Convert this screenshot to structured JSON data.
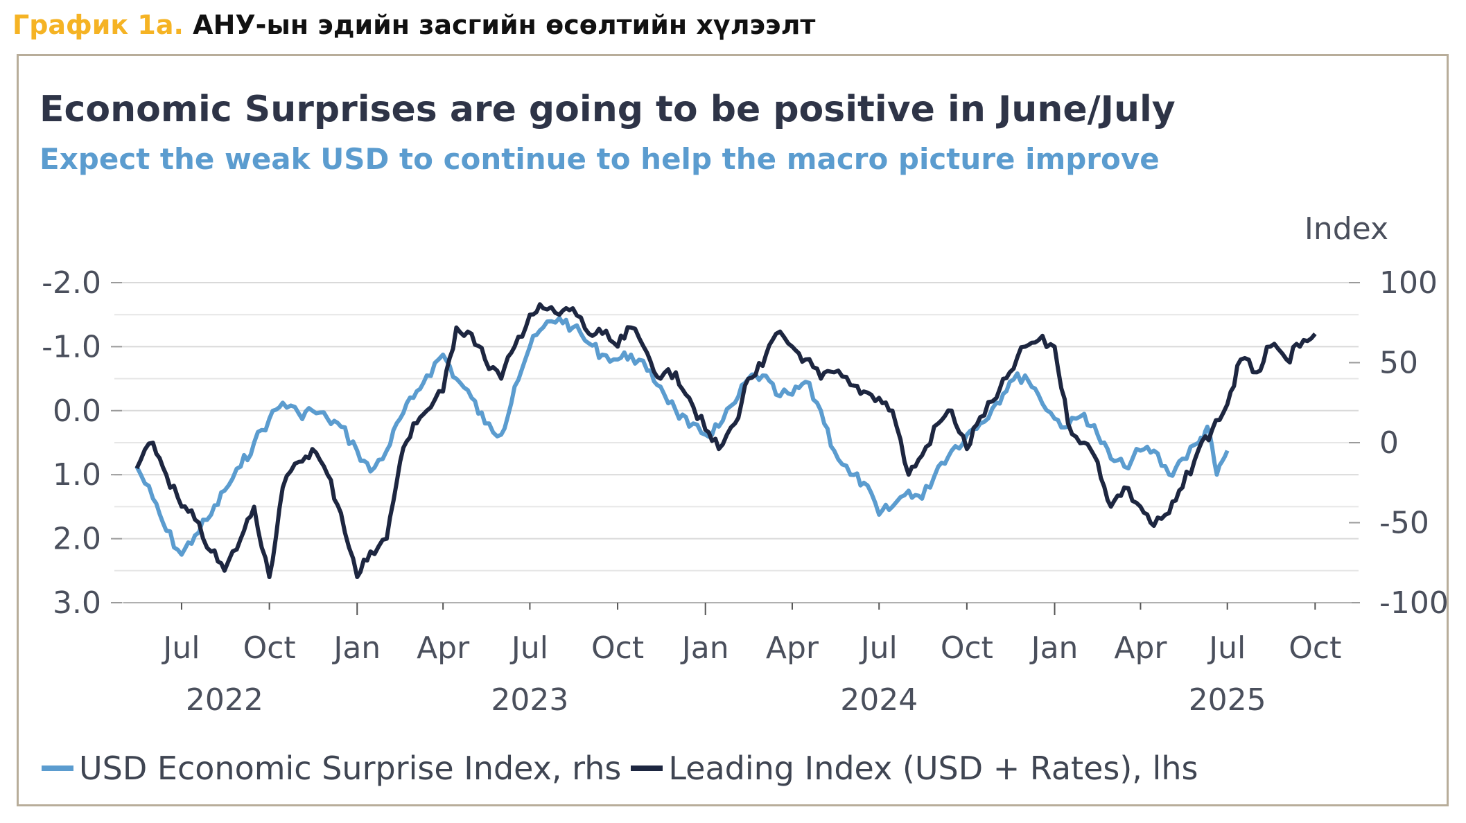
{
  "header": {
    "label": "График 1а.",
    "title": "АНУ-ын эдийн засгийн өсөлтийн хүлээлт"
  },
  "chart_data": {
    "type": "line",
    "title": "Economic Surprises are going to be positive in June/July",
    "subtitle": "Expect the weak USD to continue to help the macro picture improve",
    "right_axis_title": "Index",
    "left_axis": {
      "ticks": [
        "-2.0",
        "-1.0",
        "0.0",
        "1.0",
        "2.0",
        "3.0"
      ],
      "ylim": [
        3.0,
        -2.0
      ],
      "inverted": true
    },
    "right_axis": {
      "ticks": [
        "100",
        "50",
        "0",
        "-50",
        "-100"
      ],
      "ylim": [
        -100,
        100
      ]
    },
    "x_months": [
      "Jul",
      "Oct",
      "Jan",
      "Apr",
      "Jul",
      "Oct",
      "Jan",
      "Apr",
      "Jul",
      "Oct",
      "Jan",
      "Apr",
      "Jul",
      "Oct"
    ],
    "x_years": [
      "2022",
      "2023",
      "2024",
      "2025"
    ],
    "xlim": [
      "2022-05",
      "2025-11"
    ],
    "grid": true,
    "legend_position": "bottom-left",
    "series": [
      {
        "name": "USD Economic Surprise Index, rhs",
        "axis": "right",
        "color": "#5b9ccf",
        "points": [
          [
            "2022-05-15",
            -15
          ],
          [
            "2022-06-01",
            -35
          ],
          [
            "2022-06-15",
            -55
          ],
          [
            "2022-07-01",
            -70
          ],
          [
            "2022-07-15",
            -58
          ],
          [
            "2022-08-01",
            -45
          ],
          [
            "2022-08-15",
            -30
          ],
          [
            "2022-09-01",
            -15
          ],
          [
            "2022-09-15",
            0
          ],
          [
            "2022-10-01",
            15
          ],
          [
            "2022-10-15",
            25
          ],
          [
            "2022-11-01",
            18
          ],
          [
            "2022-11-15",
            20
          ],
          [
            "2022-12-01",
            15
          ],
          [
            "2022-12-15",
            10
          ],
          [
            "2023-01-01",
            -5
          ],
          [
            "2023-01-15",
            -18
          ],
          [
            "2023-02-01",
            -5
          ],
          [
            "2023-02-15",
            15
          ],
          [
            "2023-03-01",
            28
          ],
          [
            "2023-03-15",
            42
          ],
          [
            "2023-04-01",
            55
          ],
          [
            "2023-04-15",
            40
          ],
          [
            "2023-05-01",
            28
          ],
          [
            "2023-05-15",
            12
          ],
          [
            "2023-06-01",
            5
          ],
          [
            "2023-06-15",
            35
          ],
          [
            "2023-07-01",
            60
          ],
          [
            "2023-07-15",
            72
          ],
          [
            "2023-08-01",
            78
          ],
          [
            "2023-08-15",
            72
          ],
          [
            "2023-09-01",
            62
          ],
          [
            "2023-09-15",
            55
          ],
          [
            "2023-10-01",
            52
          ],
          [
            "2023-10-15",
            55
          ],
          [
            "2023-11-01",
            45
          ],
          [
            "2023-11-15",
            35
          ],
          [
            "2023-12-01",
            20
          ],
          [
            "2023-12-15",
            10
          ],
          [
            "2024-01-01",
            5
          ],
          [
            "2024-01-15",
            10
          ],
          [
            "2024-02-01",
            25
          ],
          [
            "2024-02-15",
            40
          ],
          [
            "2024-03-01",
            42
          ],
          [
            "2024-03-15",
            30
          ],
          [
            "2024-04-01",
            30
          ],
          [
            "2024-04-15",
            38
          ],
          [
            "2024-05-01",
            20
          ],
          [
            "2024-05-15",
            -5
          ],
          [
            "2024-06-01",
            -20
          ],
          [
            "2024-06-15",
            -25
          ],
          [
            "2024-07-01",
            -45
          ],
          [
            "2024-07-15",
            -40
          ],
          [
            "2024-08-01",
            -30
          ],
          [
            "2024-08-15",
            -35
          ],
          [
            "2024-09-01",
            -15
          ],
          [
            "2024-09-15",
            -5
          ],
          [
            "2024-10-01",
            5
          ],
          [
            "2024-10-15",
            12
          ],
          [
            "2024-11-01",
            25
          ],
          [
            "2024-11-15",
            38
          ],
          [
            "2024-12-01",
            42
          ],
          [
            "2024-12-15",
            30
          ],
          [
            "2025-01-01",
            15
          ],
          [
            "2025-01-15",
            10
          ],
          [
            "2025-02-01",
            18
          ],
          [
            "2025-02-15",
            5
          ],
          [
            "2025-03-01",
            -10
          ],
          [
            "2025-03-15",
            -15
          ],
          [
            "2025-04-01",
            -5
          ],
          [
            "2025-04-15",
            -5
          ],
          [
            "2025-05-01",
            -20
          ],
          [
            "2025-05-15",
            -10
          ],
          [
            "2025-06-01",
            0
          ],
          [
            "2025-06-10",
            10
          ],
          [
            "2025-06-20",
            -20
          ],
          [
            "2025-07-01",
            -5
          ]
        ]
      },
      {
        "name": "Leading Index (USD + Rates), lhs",
        "axis": "left",
        "color": "#1d2640",
        "points": [
          [
            "2022-05-15",
            0.9
          ],
          [
            "2022-06-01",
            0.5
          ],
          [
            "2022-06-15",
            1.0
          ],
          [
            "2022-07-01",
            1.5
          ],
          [
            "2022-07-15",
            1.7
          ],
          [
            "2022-08-01",
            2.2
          ],
          [
            "2022-08-15",
            2.5
          ],
          [
            "2022-09-01",
            2.0
          ],
          [
            "2022-09-15",
            1.5
          ],
          [
            "2022-10-01",
            2.6
          ],
          [
            "2022-10-15",
            1.2
          ],
          [
            "2022-11-01",
            0.8
          ],
          [
            "2022-11-15",
            0.6
          ],
          [
            "2022-12-01",
            1.0
          ],
          [
            "2022-12-15",
            1.6
          ],
          [
            "2023-01-01",
            2.6
          ],
          [
            "2023-01-15",
            2.2
          ],
          [
            "2023-02-01",
            2.0
          ],
          [
            "2023-02-15",
            0.8
          ],
          [
            "2023-03-01",
            0.2
          ],
          [
            "2023-03-15",
            0.0
          ],
          [
            "2023-04-01",
            -0.3
          ],
          [
            "2023-04-15",
            -1.3
          ],
          [
            "2023-05-01",
            -1.2
          ],
          [
            "2023-05-15",
            -0.8
          ],
          [
            "2023-06-01",
            -0.5
          ],
          [
            "2023-06-15",
            -1.0
          ],
          [
            "2023-07-01",
            -1.5
          ],
          [
            "2023-07-15",
            -1.6
          ],
          [
            "2023-08-01",
            -1.5
          ],
          [
            "2023-08-15",
            -1.6
          ],
          [
            "2023-09-01",
            -1.2
          ],
          [
            "2023-09-15",
            -1.2
          ],
          [
            "2023-10-01",
            -1.0
          ],
          [
            "2023-10-15",
            -1.3
          ],
          [
            "2023-11-01",
            -0.9
          ],
          [
            "2023-11-15",
            -0.5
          ],
          [
            "2023-12-01",
            -0.6
          ],
          [
            "2023-12-15",
            -0.2
          ],
          [
            "2024-01-01",
            0.3
          ],
          [
            "2024-01-15",
            0.6
          ],
          [
            "2024-02-01",
            0.2
          ],
          [
            "2024-02-15",
            -0.5
          ],
          [
            "2024-03-01",
            -0.7
          ],
          [
            "2024-03-15",
            -1.2
          ],
          [
            "2024-04-01",
            -1.0
          ],
          [
            "2024-04-15",
            -0.8
          ],
          [
            "2024-05-01",
            -0.5
          ],
          [
            "2024-05-15",
            -0.6
          ],
          [
            "2024-06-01",
            -0.4
          ],
          [
            "2024-06-15",
            -0.3
          ],
          [
            "2024-07-01",
            -0.2
          ],
          [
            "2024-07-15",
            0.0
          ],
          [
            "2024-08-01",
            1.0
          ],
          [
            "2024-08-15",
            0.7
          ],
          [
            "2024-09-01",
            0.2
          ],
          [
            "2024-09-15",
            0.0
          ],
          [
            "2024-10-01",
            0.6
          ],
          [
            "2024-10-15",
            0.1
          ],
          [
            "2024-11-01",
            -0.2
          ],
          [
            "2024-11-15",
            -0.6
          ],
          [
            "2024-12-01",
            -1.0
          ],
          [
            "2024-12-15",
            -1.1
          ],
          [
            "2025-01-01",
            -1.0
          ],
          [
            "2025-01-15",
            0.2
          ],
          [
            "2025-02-01",
            0.5
          ],
          [
            "2025-02-15",
            0.8
          ],
          [
            "2025-03-01",
            1.5
          ],
          [
            "2025-03-15",
            1.2
          ],
          [
            "2025-04-01",
            1.5
          ],
          [
            "2025-04-15",
            1.8
          ],
          [
            "2025-05-01",
            1.6
          ],
          [
            "2025-05-15",
            1.2
          ],
          [
            "2025-06-01",
            0.6
          ],
          [
            "2025-06-15",
            0.3
          ],
          [
            "2025-07-01",
            -0.1
          ],
          [
            "2025-07-15",
            -0.8
          ],
          [
            "2025-08-01",
            -0.6
          ],
          [
            "2025-08-15",
            -1.0
          ],
          [
            "2025-09-01",
            -0.8
          ],
          [
            "2025-09-15",
            -1.0
          ],
          [
            "2025-10-01",
            -1.2
          ]
        ]
      }
    ]
  }
}
